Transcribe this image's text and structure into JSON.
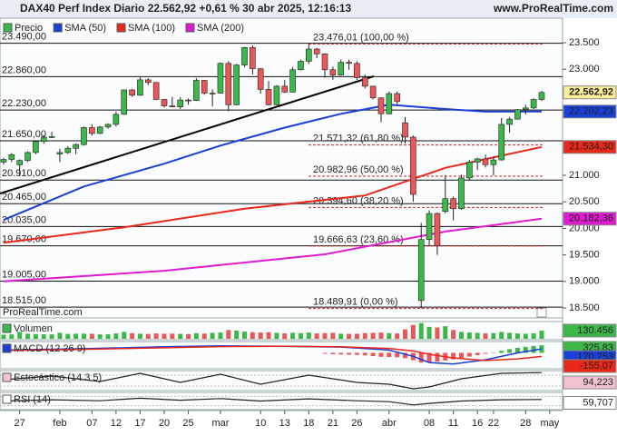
{
  "header": {
    "title": "DAX40 Perf Index Diario 22.562,92 +0,61 % 30 abr 2025, 12:16:13",
    "site": "www.ProRealTime.com",
    "watermark": "ProRealTime.com"
  },
  "chart_data": [
    {
      "type": "candlestick",
      "xlim": [
        -0.45,
        69.6
      ],
      "ylim": [
        18346,
        23723
      ],
      "xticks": [
        {
          "value": 2,
          "label": "27"
        },
        {
          "value": 7,
          "label": "feb"
        },
        {
          "value": 11,
          "label": "07"
        },
        {
          "value": 14,
          "label": "12"
        },
        {
          "value": 17,
          "label": "17"
        },
        {
          "value": 20,
          "label": "20"
        },
        {
          "value": 23,
          "label": "25"
        },
        {
          "value": 27,
          "label": "mar"
        },
        {
          "value": 32,
          "label": "10"
        },
        {
          "value": 35,
          "label": "13"
        },
        {
          "value": 38,
          "label": "18"
        },
        {
          "value": 41,
          "label": "21"
        },
        {
          "value": 44,
          "label": "26"
        },
        {
          "value": 48,
          "label": "abr"
        },
        {
          "value": 53,
          "label": "08"
        },
        {
          "value": 56,
          "label": "11"
        },
        {
          "value": 59,
          "label": "16"
        },
        {
          "value": 61,
          "label": "22"
        },
        {
          "value": 65,
          "label": "28"
        },
        {
          "value": 68,
          "label": "may"
        }
      ],
      "yticks": [
        {
          "value": 23500,
          "label": "23.500"
        },
        {
          "value": 23000,
          "label": "23.000"
        },
        {
          "value": 21000,
          "label": "21.000"
        },
        {
          "value": 20500,
          "label": "20.500"
        },
        {
          "value": 20000,
          "label": "20.000"
        },
        {
          "value": 19500,
          "label": "19.500"
        },
        {
          "value": 19000,
          "label": "19.000"
        },
        {
          "value": 18500,
          "label": "18.500"
        }
      ],
      "candles": {
        "name": "Precio",
        "up_color": "#3cb84a",
        "down_color": "#e85858",
        "last_label": "22.562,92",
        "ohlc": [
          [
            21250,
            21330,
            21200,
            21300
          ],
          [
            21300,
            21420,
            21250,
            21390
          ],
          [
            21200,
            21300,
            20980,
            21280
          ],
          [
            21280,
            21450,
            21250,
            21430
          ],
          [
            21430,
            21650,
            21400,
            21640
          ],
          [
            21640,
            21760,
            21600,
            21720
          ],
          [
            21720,
            21820,
            21700,
            21730
          ],
          [
            21400,
            21500,
            21250,
            21430
          ],
          [
            21430,
            21550,
            21400,
            21510
          ],
          [
            21510,
            21600,
            21400,
            21580
          ],
          [
            21580,
            21920,
            21560,
            21900
          ],
          [
            21900,
            21960,
            21750,
            21790
          ],
          [
            21790,
            21930,
            21780,
            21910
          ],
          [
            21910,
            21980,
            21880,
            21960
          ],
          [
            21960,
            22200,
            21920,
            22150
          ],
          [
            22150,
            22620,
            22140,
            22610
          ],
          [
            22610,
            22630,
            22480,
            22510
          ],
          [
            22510,
            22850,
            22500,
            22800
          ],
          [
            22800,
            22830,
            22700,
            22750
          ],
          [
            22750,
            22760,
            22420,
            22430
          ],
          [
            22430,
            22440,
            22280,
            22310
          ],
          [
            22310,
            22480,
            22280,
            22290
          ],
          [
            22290,
            22470,
            22250,
            22420
          ],
          [
            22420,
            22450,
            22330,
            22410
          ],
          [
            22410,
            22830,
            22400,
            22790
          ],
          [
            22790,
            22800,
            22520,
            22550
          ],
          [
            22550,
            22620,
            22300,
            22550
          ],
          [
            22550,
            23130,
            22540,
            23110
          ],
          [
            23110,
            23150,
            22210,
            22330
          ],
          [
            22330,
            23100,
            22320,
            23080
          ],
          [
            23080,
            23420,
            23040,
            23410
          ],
          [
            23410,
            23450,
            22900,
            23010
          ],
          [
            23010,
            23020,
            22540,
            22620
          ],
          [
            22620,
            22780,
            22320,
            22330
          ],
          [
            22330,
            22700,
            22320,
            22680
          ],
          [
            22680,
            22800,
            22550,
            22570
          ],
          [
            22570,
            23040,
            22560,
            22990
          ],
          [
            22990,
            23180,
            22980,
            23150
          ],
          [
            23150,
            23476,
            23100,
            23380
          ],
          [
            23380,
            23400,
            23210,
            23290
          ],
          [
            23290,
            23300,
            22840,
            22990
          ],
          [
            22990,
            23050,
            22800,
            22890
          ],
          [
            22890,
            23180,
            22880,
            23130
          ],
          [
            23130,
            23180,
            22990,
            23110
          ],
          [
            23110,
            23150,
            22800,
            22840
          ],
          [
            22840,
            22900,
            22640,
            22680
          ],
          [
            22680,
            22690,
            22430,
            22460
          ],
          [
            22460,
            22470,
            22000,
            22160
          ],
          [
            22160,
            22580,
            22150,
            22540
          ],
          [
            22540,
            22580,
            22340,
            22390
          ],
          [
            21990,
            22100,
            21600,
            21720
          ],
          [
            21720,
            21750,
            20500,
            20640
          ],
          [
            18640,
            20100,
            18489.91,
            19790
          ],
          [
            19790,
            20340,
            19680,
            20280
          ],
          [
            20280,
            20300,
            19500,
            19670
          ],
          [
            20320,
            21000,
            20280,
            20560
          ],
          [
            20560,
            20600,
            20150,
            20370
          ],
          [
            20370,
            21010,
            20350,
            20950
          ],
          [
            20950,
            21290,
            20900,
            21250
          ],
          [
            21250,
            21330,
            21100,
            21310
          ],
          [
            21310,
            21390,
            21150,
            21200
          ],
          [
            21200,
            21350,
            21000,
            21290
          ],
          [
            21290,
            22080,
            21280,
            21960
          ],
          [
            21960,
            22100,
            21800,
            22060
          ],
          [
            22060,
            22250,
            22050,
            22240
          ],
          [
            22240,
            22330,
            22150,
            22270
          ],
          [
            22270,
            22450,
            22250,
            22430
          ],
          [
            22430,
            22590,
            22400,
            22562.92
          ]
        ]
      },
      "series": [
        {
          "name": "SMA (50)",
          "color": "#1a3fd6",
          "x": [
            0,
            10,
            20,
            27,
            35,
            42,
            48,
            55,
            60,
            67
          ],
          "values": [
            20160,
            20790,
            21220,
            21560,
            21900,
            22160,
            22330,
            22250,
            22200,
            22202.23
          ],
          "value_labels": [
            null,
            null,
            null,
            null,
            null,
            null,
            null,
            null,
            null,
            "22.202,23"
          ]
        },
        {
          "name": "SMA (100)",
          "color": "#e8281a",
          "x": [
            0,
            15,
            30,
            45,
            55,
            67
          ],
          "values": [
            19730,
            20020,
            20370,
            20620,
            21140,
            21534.3
          ],
          "value_labels": [
            null,
            null,
            null,
            null,
            null,
            "21.534,30"
          ]
        },
        {
          "name": "SMA (200)",
          "color": "#e01ad0",
          "x": [
            0,
            20,
            40,
            55,
            67
          ],
          "values": [
            19000,
            19200,
            19510,
            19940,
            20182.36
          ],
          "value_labels": [
            null,
            null,
            null,
            null,
            "20.182,36"
          ]
        }
      ],
      "levels": [
        {
          "value": 23490,
          "label": "23.490,00"
        },
        {
          "value": 22860,
          "label": "22.860,00"
        },
        {
          "value": 22230,
          "label": "22.230,00"
        },
        {
          "value": 21650,
          "label": "21.650,00"
        },
        {
          "value": 20910,
          "label": "20.910,00"
        },
        {
          "value": 20465,
          "label": "20.465,00"
        },
        {
          "value": 20035,
          "label": "20.035,00"
        },
        {
          "value": 19670,
          "label": "19.670,00"
        },
        {
          "value": 19005,
          "label": "19.005,00"
        },
        {
          "value": 18515,
          "label": "18.515,00"
        }
      ],
      "fibonacci": [
        {
          "value": 23476.01,
          "label": "23.476,01 (100,00 %)"
        },
        {
          "value": 21571.32,
          "label": "21.571,32 (61,80 %)"
        },
        {
          "value": 20982.96,
          "label": "20.982,96 (50,00 %)"
        },
        {
          "value": 20394.6,
          "label": "20.394,60 (38,20 %)"
        },
        {
          "value": 19666.63,
          "label": "19.666,63 (23,60 %)"
        },
        {
          "value": 18489.91,
          "label": "18.489,91 (0,00 %)"
        }
      ]
    },
    {
      "type": "bar",
      "name": "Volumen",
      "color": "#3cb84a",
      "ylim": [
        0,
        260000
      ],
      "values": [
        65000,
        70000,
        110000,
        80000,
        75000,
        72000,
        70000,
        95000,
        78000,
        80000,
        82000,
        80000,
        70000,
        72000,
        85000,
        110000,
        90000,
        80000,
        78000,
        85000,
        80000,
        82000,
        78000,
        75000,
        88000,
        82000,
        95000,
        100000,
        140000,
        130000,
        115000,
        105000,
        100000,
        105000,
        95000,
        85000,
        95000,
        90000,
        100000,
        85000,
        90000,
        95000,
        80000,
        78000,
        80000,
        90000,
        95000,
        100000,
        90000,
        85000,
        150000,
        220000,
        250000,
        190000,
        180000,
        200000,
        140000,
        110000,
        100000,
        95000,
        85000,
        90000,
        110000,
        95000,
        85000,
        80000,
        88000,
        130456
      ],
      "value_labels": [
        null,
        null,
        null,
        null,
        null,
        null,
        null,
        null,
        null,
        null,
        null,
        null,
        null,
        null,
        null,
        null,
        null,
        null,
        null,
        null,
        null,
        null,
        null,
        null,
        null,
        null,
        null,
        null,
        null,
        null,
        null,
        null,
        null,
        null,
        null,
        null,
        null,
        null,
        null,
        null,
        null,
        null,
        null,
        null,
        null,
        null,
        null,
        null,
        null,
        null,
        null,
        null,
        null,
        null,
        null,
        null,
        null,
        null,
        null,
        null,
        null,
        null,
        null,
        null,
        null,
        null,
        null,
        "130.456"
      ]
    },
    {
      "type": "macd",
      "name": "MACD (12 26 9)",
      "ylim": [
        -650,
        450
      ],
      "histogram": {
        "color": "#3cb84a",
        "x": [
          40,
          41,
          42,
          43,
          44,
          45,
          46,
          47,
          48,
          49,
          50,
          51,
          52,
          53,
          54,
          55,
          56,
          57,
          58,
          59,
          60,
          61,
          62,
          63,
          64,
          65,
          66,
          67
        ],
        "values": [
          -40,
          -60,
          -70,
          -80,
          -90,
          -110,
          -140,
          -170,
          -180,
          -190,
          -230,
          -320,
          -420,
          -400,
          -380,
          -330,
          -280,
          -220,
          -160,
          -100,
          -40,
          20,
          90,
          160,
          220,
          260,
          300,
          325.83
        ],
        "last_label": "325,83"
      },
      "series": [
        {
          "color": "#1a3fd6",
          "x": [
            0,
            10,
            20,
            27,
            35,
            42,
            48,
            51,
            53,
            56,
            60,
            64,
            67
          ],
          "values": [
            120,
            180,
            260,
            300,
            280,
            250,
            120,
            -150,
            -420,
            -480,
            -300,
            0,
            170.753
          ],
          "last_label": "170,753"
        },
        {
          "color": "#e8281a",
          "x": [
            0,
            10,
            20,
            27,
            35,
            42,
            48,
            51,
            53,
            56,
            60,
            64,
            67
          ],
          "values": [
            100,
            150,
            220,
            270,
            280,
            260,
            190,
            80,
            -60,
            -220,
            -330,
            -260,
            -155.07
          ],
          "last_label": "-155,07"
        }
      ]
    },
    {
      "type": "line",
      "name": "Estocástico (14 3 5)",
      "color": "#222222",
      "ylim": [
        0,
        100
      ],
      "x": [
        0,
        6,
        12,
        17,
        22,
        27,
        32,
        38,
        44,
        48,
        51,
        53,
        57,
        62,
        67
      ],
      "values": [
        55,
        75,
        45,
        90,
        40,
        85,
        30,
        80,
        40,
        30,
        5,
        15,
        60,
        90,
        94.223
      ],
      "last_label": "94,223",
      "label_color": "#f3c4d0"
    },
    {
      "type": "line",
      "name": "RSI (14)",
      "color": "#222222",
      "ylim": [
        0,
        100
      ],
      "x": [
        0,
        6,
        12,
        17,
        22,
        27,
        32,
        38,
        44,
        48,
        51,
        53,
        57,
        62,
        67
      ],
      "values": [
        50,
        58,
        52,
        68,
        55,
        66,
        50,
        64,
        52,
        46,
        25,
        35,
        50,
        58,
        59.707
      ],
      "last_label": "59,707",
      "label_color": "#ffffff"
    }
  ]
}
